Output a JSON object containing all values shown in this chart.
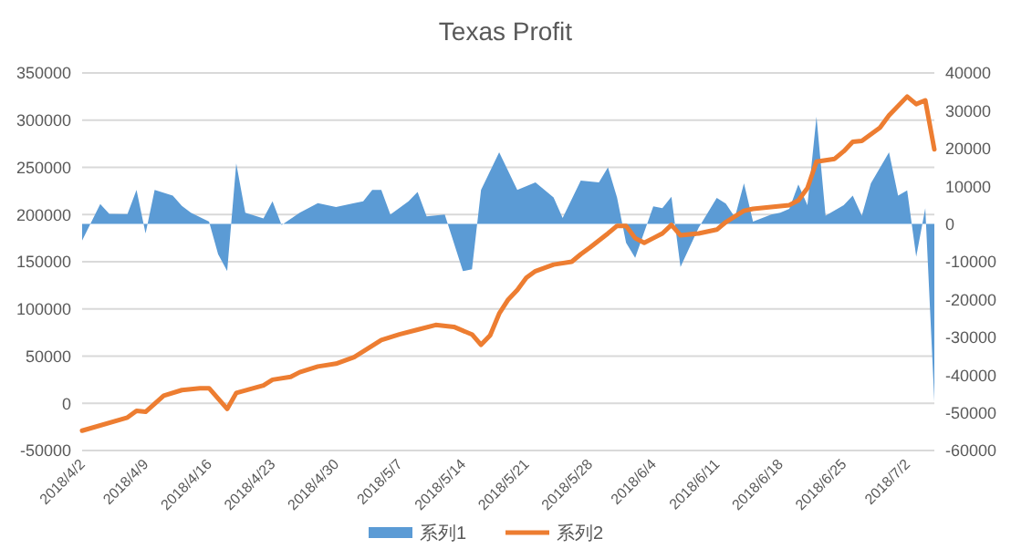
{
  "chart_data": {
    "type": "line",
    "title": "Texas Profit",
    "legend": "bottom",
    "grid": "y",
    "xlim": [
      "2018-04-02",
      "2018-07-05"
    ],
    "xticks": [
      {
        "value": "2018-04-02",
        "label": "2018/4/2"
      },
      {
        "value": "2018-04-09",
        "label": "2018/4/9"
      },
      {
        "value": "2018-04-16",
        "label": "2018/4/16"
      },
      {
        "value": "2018-04-23",
        "label": "2018/4/23"
      },
      {
        "value": "2018-04-30",
        "label": "2018/4/30"
      },
      {
        "value": "2018-05-07",
        "label": "2018/5/7"
      },
      {
        "value": "2018-05-14",
        "label": "2018/5/14"
      },
      {
        "value": "2018-05-21",
        "label": "2018/5/21"
      },
      {
        "value": "2018-05-28",
        "label": "2018/5/28"
      },
      {
        "value": "2018-06-04",
        "label": "2018/6/4"
      },
      {
        "value": "2018-06-11",
        "label": "2018/6/11"
      },
      {
        "value": "2018-06-18",
        "label": "2018/6/18"
      },
      {
        "value": "2018-06-25",
        "label": "2018/6/25"
      },
      {
        "value": "2018-07-02",
        "label": "2018/7/2"
      }
    ],
    "ylim": [
      -50000,
      350000
    ],
    "yticks": [
      -50000,
      0,
      50000,
      100000,
      150000,
      200000,
      250000,
      300000,
      350000
    ],
    "y2lim": [
      -60000,
      40000
    ],
    "y2ticks": [
      -60000,
      -50000,
      -40000,
      -30000,
      -20000,
      -10000,
      0,
      10000,
      20000,
      30000,
      40000
    ],
    "series": [
      {
        "name": "系列1",
        "type": "area",
        "axis": "y2",
        "color": "#5b9bd5",
        "x": [
          "2018-04-02",
          "2018-04-04",
          "2018-04-05",
          "2018-04-07",
          "2018-04-08",
          "2018-04-09",
          "2018-04-10",
          "2018-04-12",
          "2018-04-13",
          "2018-04-14",
          "2018-04-16",
          "2018-04-17",
          "2018-04-18",
          "2018-04-19",
          "2018-04-20",
          "2018-04-22",
          "2018-04-23",
          "2018-04-24",
          "2018-04-26",
          "2018-04-28",
          "2018-04-30",
          "2018-05-02",
          "2018-05-03",
          "2018-05-04",
          "2018-05-05",
          "2018-05-06",
          "2018-05-08",
          "2018-05-09",
          "2018-05-10",
          "2018-05-12",
          "2018-05-14",
          "2018-05-15",
          "2018-05-16",
          "2018-05-18",
          "2018-05-20",
          "2018-05-22",
          "2018-05-24",
          "2018-05-25",
          "2018-05-27",
          "2018-05-29",
          "2018-05-30",
          "2018-05-31",
          "2018-06-01",
          "2018-06-02",
          "2018-06-04",
          "2018-06-05",
          "2018-06-06",
          "2018-06-07",
          "2018-06-09",
          "2018-06-11",
          "2018-06-12",
          "2018-06-13",
          "2018-06-14",
          "2018-06-15",
          "2018-06-17",
          "2018-06-18",
          "2018-06-19",
          "2018-06-20",
          "2018-06-21",
          "2018-06-22",
          "2018-06-23",
          "2018-06-25",
          "2018-06-26",
          "2018-06-27",
          "2018-06-28",
          "2018-06-30",
          "2018-07-01",
          "2018-07-02",
          "2018-07-03",
          "2018-07-04",
          "2018-07-05"
        ],
        "values": [
          -4400,
          5300,
          2700,
          2600,
          9000,
          -2500,
          9000,
          7500,
          4800,
          3000,
          600,
          -8000,
          -12500,
          16000,
          3000,
          1500,
          6000,
          -300,
          3000,
          5500,
          4500,
          5500,
          6000,
          9000,
          9000,
          2500,
          6000,
          8500,
          2000,
          2500,
          -12500,
          -12000,
          9000,
          19000,
          9000,
          11000,
          7000,
          1600,
          11500,
          11000,
          15000,
          7000,
          -5000,
          -9000,
          4700,
          4200,
          7200,
          -11400,
          -1000,
          6900,
          5400,
          1800,
          10800,
          600,
          2500,
          3000,
          4000,
          10500,
          5000,
          28400,
          2200,
          5000,
          7500,
          2200,
          10800,
          19000,
          7500,
          8900,
          -8700,
          4200,
          -47000
        ]
      },
      {
        "name": "系列2",
        "type": "line",
        "color": "#ed7d31",
        "x": [
          "2018-04-02",
          "2018-04-07",
          "2018-04-08",
          "2018-04-09",
          "2018-04-11",
          "2018-04-13",
          "2018-04-15",
          "2018-04-16",
          "2018-04-18",
          "2018-04-19",
          "2018-04-22",
          "2018-04-23",
          "2018-04-25",
          "2018-04-26",
          "2018-04-28",
          "2018-04-30",
          "2018-05-02",
          "2018-05-05",
          "2018-05-07",
          "2018-05-09",
          "2018-05-11",
          "2018-05-13",
          "2018-05-15",
          "2018-05-16",
          "2018-05-17",
          "2018-05-18",
          "2018-05-19",
          "2018-05-20",
          "2018-05-21",
          "2018-05-22",
          "2018-05-24",
          "2018-05-26",
          "2018-05-27",
          "2018-05-28",
          "2018-05-30",
          "2018-05-31",
          "2018-06-01",
          "2018-06-02",
          "2018-06-03",
          "2018-06-04",
          "2018-06-05",
          "2018-06-06",
          "2018-06-07",
          "2018-06-09",
          "2018-06-11",
          "2018-06-12",
          "2018-06-14",
          "2018-06-15",
          "2018-06-17",
          "2018-06-19",
          "2018-06-20",
          "2018-06-21",
          "2018-06-22",
          "2018-06-24",
          "2018-06-25",
          "2018-06-26",
          "2018-06-27",
          "2018-06-29",
          "2018-06-30",
          "2018-07-02",
          "2018-07-03",
          "2018-07-04",
          "2018-07-05"
        ],
        "values": [
          -29000,
          -15000,
          -8000,
          -9000,
          8000,
          14000,
          16000,
          16000,
          -6000,
          11000,
          19000,
          25000,
          28000,
          33000,
          39000,
          42000,
          49000,
          67000,
          73000,
          78000,
          83000,
          81000,
          73000,
          62000,
          72000,
          95000,
          110000,
          120000,
          133000,
          140000,
          147000,
          150000,
          158000,
          165000,
          180000,
          188000,
          188000,
          175000,
          170000,
          175000,
          180000,
          189000,
          178000,
          180000,
          184000,
          192000,
          204000,
          206000,
          208000,
          210000,
          215000,
          228000,
          256000,
          259000,
          267000,
          277000,
          278000,
          292000,
          305000,
          325000,
          317000,
          321000,
          269000
        ]
      }
    ]
  }
}
